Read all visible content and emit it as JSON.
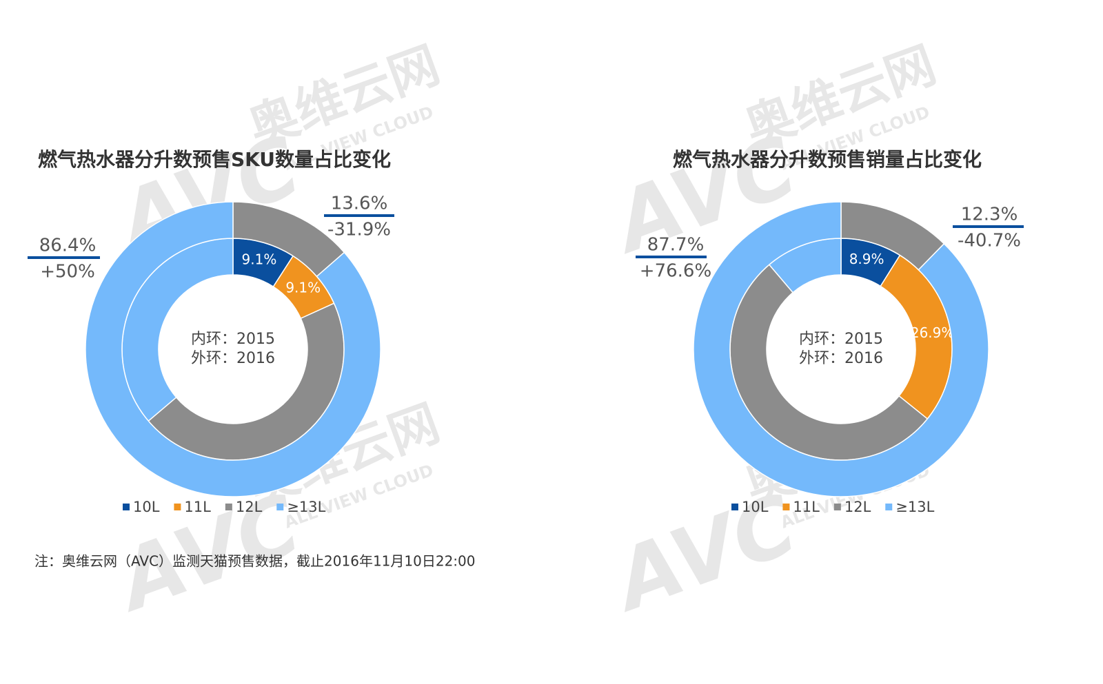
{
  "chart_data": [
    {
      "type": "donut",
      "title": "燃气热水器分升数预售SKU数量占比变化",
      "categories": [
        "10L",
        "11L",
        "12L",
        "≥13L"
      ],
      "colors": [
        "#0a4f9e",
        "#f0931f",
        "#8c8c8c",
        "#74b9fb"
      ],
      "rings": [
        {
          "label": "内环：2015",
          "values": [
            9.1,
            9.1,
            45.6,
            36.2
          ],
          "value_labels": [
            "9.1%",
            "9.1%",
            null,
            null
          ]
        },
        {
          "label": "外环：2016",
          "values": [
            0,
            0,
            13.6,
            86.4
          ],
          "value_labels": [
            null,
            null,
            "13.6%",
            "86.4%"
          ],
          "change_labels": [
            null,
            null,
            "-31.9%",
            "+50%"
          ]
        }
      ]
    },
    {
      "type": "donut",
      "title": "燃气热水器分升数预售销量占比变化",
      "categories": [
        "10L",
        "11L",
        "12L",
        "≥13L"
      ],
      "colors": [
        "#0a4f9e",
        "#f0931f",
        "#8c8c8c",
        "#74b9fb"
      ],
      "rings": [
        {
          "label": "内环：2015",
          "values": [
            8.9,
            26.9,
            53.0,
            11.2
          ],
          "value_labels": [
            "8.9%",
            "26.9%",
            null,
            null
          ]
        },
        {
          "label": "外环：2016",
          "values": [
            0,
            0,
            12.3,
            87.7
          ],
          "value_labels": [
            null,
            null,
            "12.3%",
            "87.7%"
          ],
          "change_labels": [
            null,
            null,
            "-40.7%",
            "+76.6%"
          ]
        }
      ]
    }
  ],
  "footnote": "注：奥维云网（AVC）监测天猫预售数据，截止2016年11月10日22:00",
  "watermark": {
    "mark": "AVC",
    "name": "奥维云网",
    "tagline": "ALL VIEW CLOUD"
  }
}
